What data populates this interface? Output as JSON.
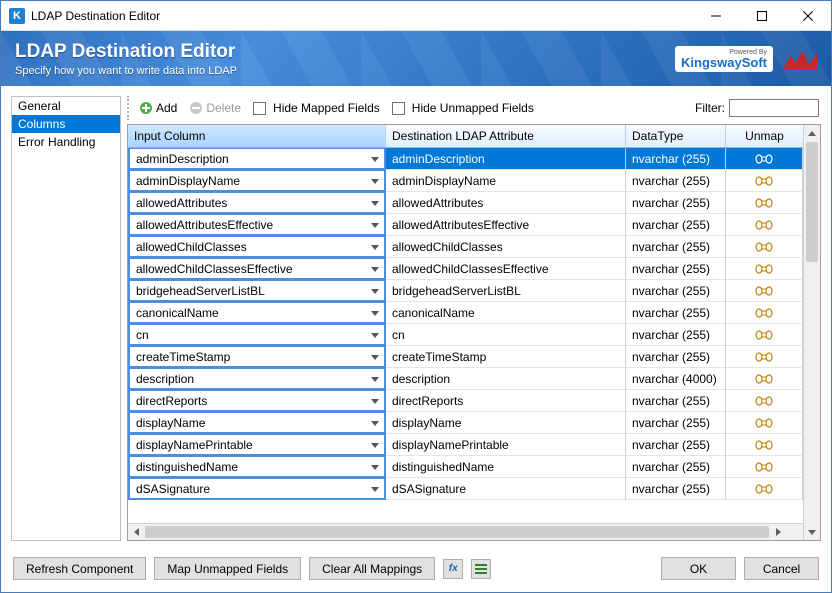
{
  "window": {
    "title": "LDAP Destination Editor"
  },
  "banner": {
    "heading": "LDAP Destination Editor",
    "subtitle": "Specify how you want to write data into LDAP",
    "brand_small": "Powered By",
    "brand": "KingswaySoft"
  },
  "sidebar": {
    "items": [
      {
        "label": "General",
        "selected": false
      },
      {
        "label": "Columns",
        "selected": true
      },
      {
        "label": "Error Handling",
        "selected": false
      }
    ]
  },
  "toolbar": {
    "add": "Add",
    "delete": "Delete",
    "hide_mapped": "Hide Mapped Fields",
    "hide_unmapped": "Hide Unmapped Fields",
    "filter_label": "Filter:",
    "filter_value": ""
  },
  "grid": {
    "headers": {
      "input": "Input Column",
      "dest": "Destination LDAP Attribute",
      "dtype": "DataType",
      "unmap": "Unmap"
    },
    "rows": [
      {
        "input": "adminDescription",
        "dest": "adminDescription",
        "dtype": "nvarchar (255)",
        "sel": true
      },
      {
        "input": "adminDisplayName",
        "dest": "adminDisplayName",
        "dtype": "nvarchar (255)"
      },
      {
        "input": "allowedAttributes",
        "dest": "allowedAttributes",
        "dtype": "nvarchar (255)"
      },
      {
        "input": "allowedAttributesEffective",
        "dest": "allowedAttributesEffective",
        "dtype": "nvarchar (255)"
      },
      {
        "input": "allowedChildClasses",
        "dest": "allowedChildClasses",
        "dtype": "nvarchar (255)"
      },
      {
        "input": "allowedChildClassesEffective",
        "dest": "allowedChildClassesEffective",
        "dtype": "nvarchar (255)"
      },
      {
        "input": "bridgeheadServerListBL",
        "dest": "bridgeheadServerListBL",
        "dtype": "nvarchar (255)"
      },
      {
        "input": "canonicalName",
        "dest": "canonicalName",
        "dtype": "nvarchar (255)"
      },
      {
        "input": "cn",
        "dest": "cn",
        "dtype": "nvarchar (255)"
      },
      {
        "input": "createTimeStamp",
        "dest": "createTimeStamp",
        "dtype": "nvarchar (255)"
      },
      {
        "input": "description",
        "dest": "description",
        "dtype": "nvarchar (4000)"
      },
      {
        "input": "directReports",
        "dest": "directReports",
        "dtype": "nvarchar (255)"
      },
      {
        "input": "displayName",
        "dest": "displayName",
        "dtype": "nvarchar (255)"
      },
      {
        "input": "displayNamePrintable",
        "dest": "displayNamePrintable",
        "dtype": "nvarchar (255)"
      },
      {
        "input": "distinguishedName",
        "dest": "distinguishedName",
        "dtype": "nvarchar (255)"
      },
      {
        "input": "dSASignature",
        "dest": "dSASignature",
        "dtype": "nvarchar (255)"
      }
    ]
  },
  "footer": {
    "refresh": "Refresh Component",
    "map_unmapped": "Map Unmapped Fields",
    "clear_all": "Clear All Mappings",
    "ok": "OK",
    "cancel": "Cancel"
  },
  "colors": {
    "selection": "#0078d7",
    "input_border": "#4b8de0",
    "banner_start": "#2f6fbf",
    "banner_end": "#1c5aa5"
  }
}
